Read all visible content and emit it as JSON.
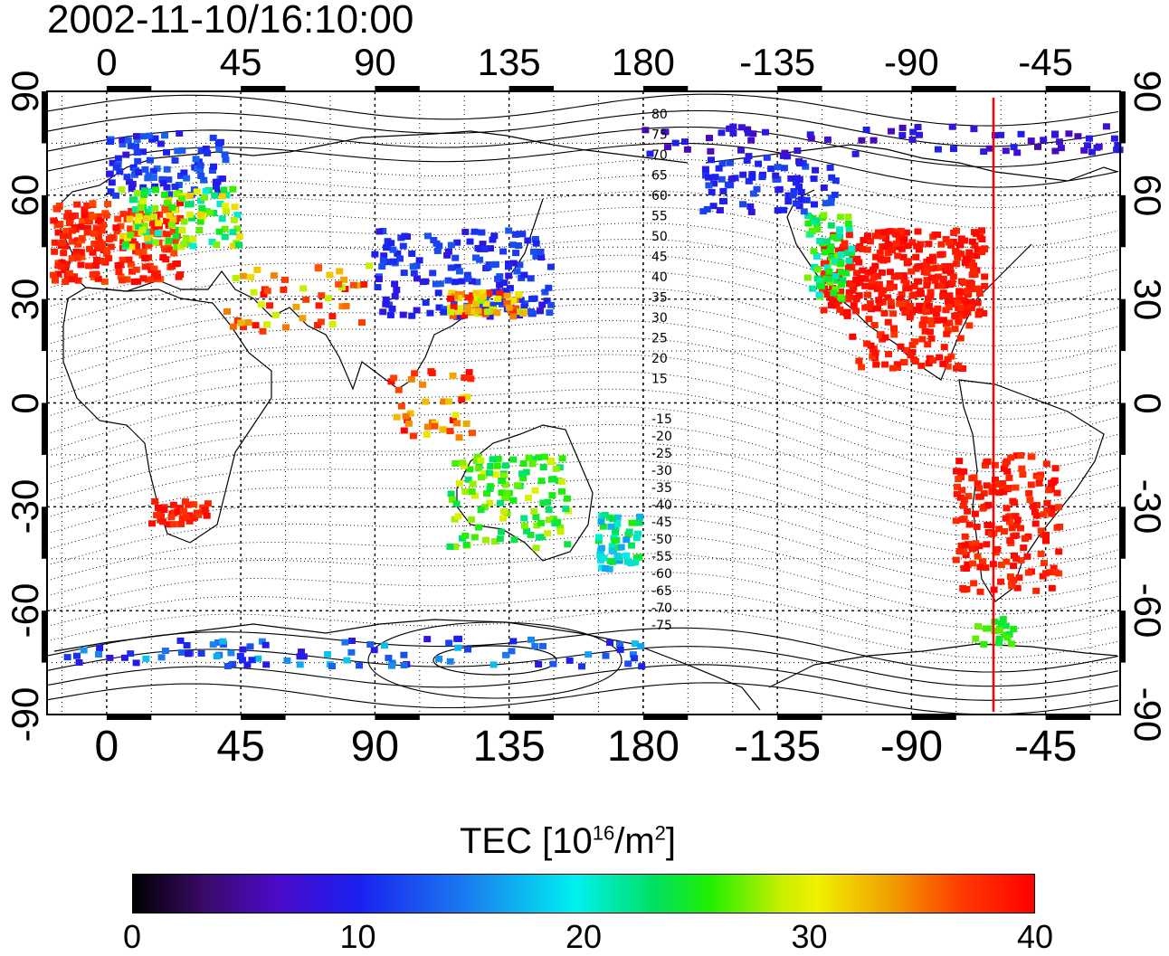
{
  "title": "2002-11-10/16:10:00",
  "longitude_ticks": [
    "0",
    "45",
    "90",
    "135",
    "180",
    "-135",
    "-90",
    "-45"
  ],
  "latitude_ticks": [
    "90",
    "60",
    "30",
    "0",
    "-30",
    "-60",
    "-90"
  ],
  "contour_labels": [
    "80",
    "75",
    "70",
    "65",
    "60",
    "55",
    "50",
    "45",
    "40",
    "35",
    "30",
    "25",
    "20",
    "15",
    "-15",
    "-20",
    "-25",
    "-30",
    "-35",
    "-40",
    "-45",
    "-50",
    "-55",
    "-60",
    "-65",
    "-70",
    "-75"
  ],
  "colorbar": {
    "title_prefix": "TEC  [10",
    "title_exp1": "16",
    "title_mid": "/m",
    "title_exp2": "2",
    "title_suffix": "]",
    "ticks": [
      "0",
      "10",
      "20",
      "30",
      "40"
    ],
    "range": [
      0,
      40
    ]
  },
  "marker_line": {
    "longitude": -62.5,
    "color": "#ff0000"
  },
  "colors": {
    "frame": "#000000",
    "grid": "#000000",
    "marker": "#ff0000"
  }
}
